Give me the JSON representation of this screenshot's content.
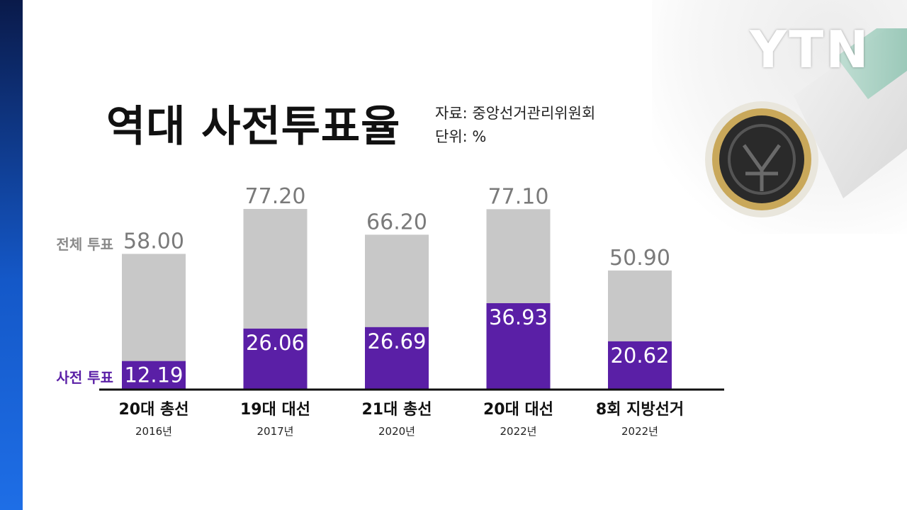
{
  "logo": "YTN",
  "title": "역대 사전투표율",
  "meta": {
    "source": "자료: 중앙선거관리위원회",
    "unit": "단위: %"
  },
  "colors": {
    "total": "#c8c8c8",
    "early": "#5a1fa6",
    "total_label": "#8a8a8a",
    "early_label": "#5a1fa6",
    "value_total": "#7a7a7a",
    "value_early": "#ffffff",
    "axis": "#111111"
  },
  "chart_data": {
    "type": "bar",
    "stacking": "overlay",
    "categories": [
      "20대 총선",
      "19대 대선",
      "21대 총선",
      "20대 대선",
      "8회 지방선거"
    ],
    "category_years": [
      "2016년",
      "2017년",
      "2020년",
      "2022년",
      "2022년"
    ],
    "series": [
      {
        "name": "전체 투표",
        "values": [
          58.0,
          77.2,
          66.2,
          77.1,
          50.9
        ]
      },
      {
        "name": "사전 투표",
        "values": [
          12.19,
          26.06,
          26.69,
          36.93,
          20.62
        ]
      }
    ],
    "value_labels_total": [
      "58.00",
      "77.20",
      "66.20",
      "77.10",
      "50.90"
    ],
    "value_labels_early": [
      "12.19",
      "26.06",
      "26.69",
      "36.93",
      "20.62"
    ],
    "ylim": [
      0,
      100
    ],
    "grid": false,
    "legend": "left, next to first bar"
  }
}
